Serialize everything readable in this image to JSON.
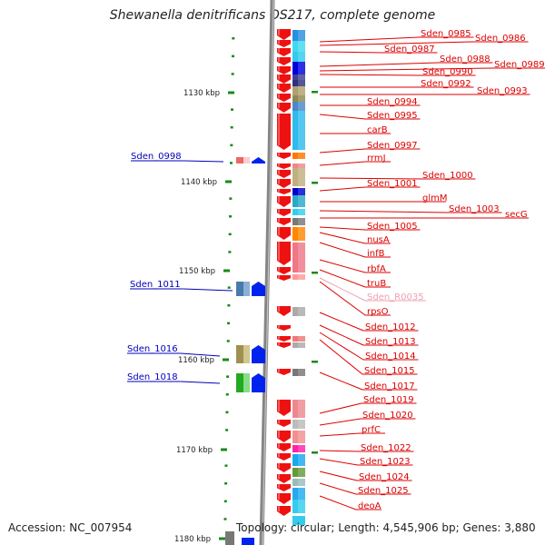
{
  "header": {
    "title": "Shewanella denitrificans OS217, complete genome"
  },
  "footer": {
    "accession": "Accession: NC_007954",
    "summary": "Topology: circular; Length: 4,545,906 bp; Genes: 3,880"
  },
  "colors": {
    "forward_gene": "#ee1111",
    "reverse_gene": "#0022ee",
    "tick": "#1a8a1a",
    "backbone": "#808080",
    "label_red": "#dd0000",
    "label_blue": "#0000bb",
    "label_pink": "#f0a0b0"
  },
  "scale": {
    "unit": "kbp",
    "ticks": [
      "1130 kbp",
      "1140 kbp",
      "1150 kbp",
      "1160 kbp",
      "1170 kbp",
      "1180 kbp"
    ]
  },
  "genes_right": [
    {
      "name": "Sden_0985"
    },
    {
      "name": "Sden_0986"
    },
    {
      "name": "Sden_0987"
    },
    {
      "name": "Sden_0988"
    },
    {
      "name": "Sden_0989"
    },
    {
      "name": "Sden_0990"
    },
    {
      "name": "Sden_0992"
    },
    {
      "name": "Sden_0993"
    },
    {
      "name": "Sden_0994"
    },
    {
      "name": "Sden_0995"
    },
    {
      "name": "carB"
    },
    {
      "name": "Sden_0997"
    },
    {
      "name": "rrmJ"
    },
    {
      "name": "Sden_1000"
    },
    {
      "name": "Sden_1001"
    },
    {
      "name": "glmM"
    },
    {
      "name": "Sden_1003"
    },
    {
      "name": "secG"
    },
    {
      "name": "Sden_1005"
    },
    {
      "name": "nusA"
    },
    {
      "name": "infB"
    },
    {
      "name": "rbfA"
    },
    {
      "name": "truB"
    },
    {
      "name": "Sden_R0035",
      "rna": true
    },
    {
      "name": "rpsO"
    },
    {
      "name": "Sden_1012"
    },
    {
      "name": "Sden_1013"
    },
    {
      "name": "Sden_1014"
    },
    {
      "name": "Sden_1015"
    },
    {
      "name": "Sden_1017"
    },
    {
      "name": "Sden_1019"
    },
    {
      "name": "Sden_1020"
    },
    {
      "name": "prfC"
    },
    {
      "name": "Sden_1022"
    },
    {
      "name": "Sden_1023"
    },
    {
      "name": "Sden_1024"
    },
    {
      "name": "Sden_1025"
    },
    {
      "name": "deoA"
    }
  ],
  "genes_left": [
    {
      "name": "Sden_0998"
    },
    {
      "name": "Sden_1011"
    },
    {
      "name": "Sden_1016"
    },
    {
      "name": "Sden_1018"
    }
  ]
}
